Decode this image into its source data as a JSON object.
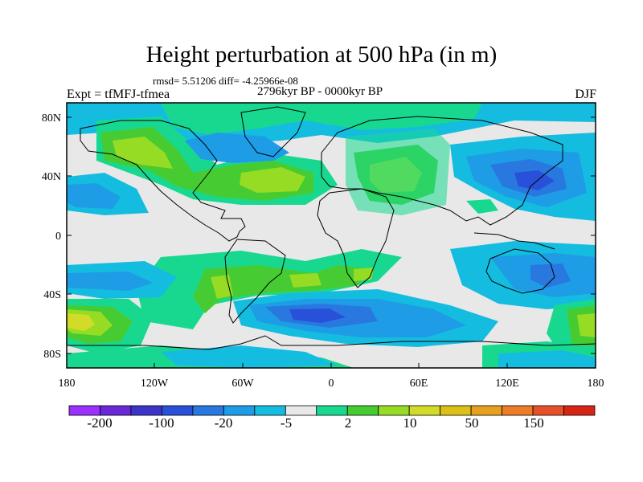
{
  "title": "Height perturbation at 500 hPa (in m)",
  "stats": "rmsd= 5.51206 diff= -4.25966e-08",
  "experiment": "Expt = tfMFJ-tfmea",
  "period": "2796kyr BP - 0000kyr BP",
  "season": "DJF",
  "lat_labels": [
    "80N",
    "40N",
    "0",
    "40S",
    "80S"
  ],
  "lon_labels": [
    "180",
    "120W",
    "60W",
    "0",
    "60E",
    "120E",
    "180"
  ],
  "colorbar": {
    "colors": [
      "#9b30ff",
      "#6a28d8",
      "#3c34c8",
      "#2850d8",
      "#2878e0",
      "#1e9ce6",
      "#14bce0",
      "#e8e8e8",
      "#18d890",
      "#46cc32",
      "#96dc24",
      "#d2dc28",
      "#dcc016",
      "#e6a01e",
      "#ec7c28",
      "#e8502a",
      "#d82416"
    ],
    "labels": [
      "-200",
      "-100",
      "-20",
      "-5",
      "2",
      "10",
      "50",
      "150"
    ]
  },
  "colors": {
    "background": "#e8e8e8",
    "neg_light": "#14bce0",
    "neg_mid": "#1e9ce6",
    "neg_strong": "#2878e0",
    "neg_stronger": "#2850d8",
    "pos_light": "#18d890",
    "pos_mid": "#46cc32",
    "pos_strong": "#96dc24",
    "pos_stronger": "#d2dc28",
    "pos_peak": "#dcc016"
  }
}
